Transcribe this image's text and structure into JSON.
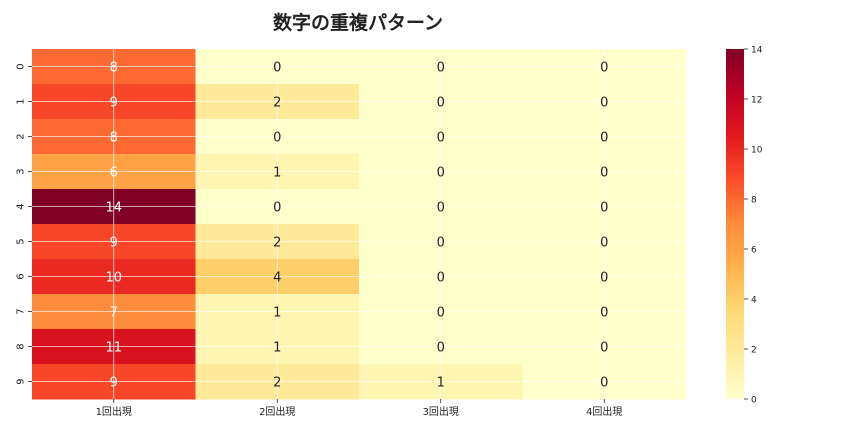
{
  "chart_data": {
    "type": "heatmap",
    "title": "数字の重複パターン",
    "xlabel": "",
    "ylabel": "",
    "columns": [
      "1回出現",
      "2回出現",
      "3回出現",
      "4回出現"
    ],
    "rows": [
      "0",
      "1",
      "2",
      "3",
      "4",
      "5",
      "6",
      "7",
      "8",
      "9"
    ],
    "values": [
      [
        8,
        0,
        0,
        0
      ],
      [
        9,
        2,
        0,
        0
      ],
      [
        8,
        0,
        0,
        0
      ],
      [
        6,
        1,
        0,
        0
      ],
      [
        14,
        0,
        0,
        0
      ],
      [
        9,
        2,
        0,
        0
      ],
      [
        10,
        4,
        0,
        0
      ],
      [
        7,
        1,
        0,
        0
      ],
      [
        11,
        1,
        0,
        0
      ],
      [
        9,
        2,
        1,
        0
      ]
    ],
    "colorbar": {
      "min": 0,
      "max": 14,
      "ticks": [
        0,
        2,
        4,
        6,
        8,
        10,
        12,
        14
      ]
    },
    "colormap": [
      "#ffffcc",
      "#ffeda0",
      "#fed976",
      "#feb24c",
      "#fd8d3c",
      "#fc4e2a",
      "#e31a1c",
      "#bd0026",
      "#800026"
    ],
    "grid": true,
    "annotations": true
  }
}
